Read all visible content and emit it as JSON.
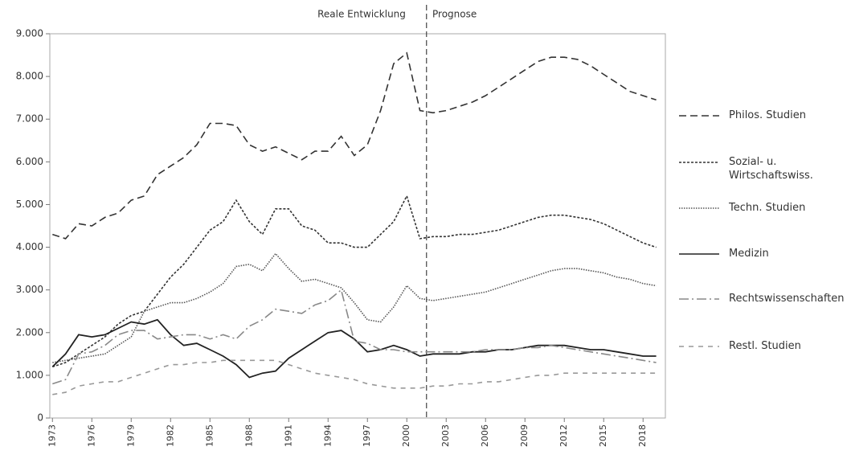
{
  "chart_data": {
    "type": "line",
    "annotations": [
      "Reale Entwicklung",
      "Prognose"
    ],
    "divider_x": 2001.5,
    "x": [
      1973,
      1974,
      1975,
      1976,
      1977,
      1978,
      1979,
      1980,
      1981,
      1982,
      1983,
      1984,
      1985,
      1986,
      1987,
      1988,
      1989,
      1990,
      1991,
      1992,
      1993,
      1994,
      1995,
      1996,
      1997,
      1998,
      1999,
      2000,
      2001,
      2002,
      2003,
      2004,
      2005,
      2006,
      2007,
      2008,
      2009,
      2010,
      2011,
      2012,
      2013,
      2014,
      2015,
      2016,
      2017,
      2018,
      2019
    ],
    "xlim": [
      1972.8,
      2019.7
    ],
    "xticks": [
      1973,
      1976,
      1979,
      1982,
      1985,
      1988,
      1991,
      1994,
      1997,
      2000,
      2003,
      2006,
      2009,
      2012,
      2015,
      2018
    ],
    "ylim": [
      0,
      9000
    ],
    "yticks": [
      0,
      {
        "value": 1000,
        "label": "1.000"
      },
      {
        "value": 2000,
        "label": "2.000"
      },
      {
        "value": 3000,
        "label": "3.000"
      },
      {
        "value": 4000,
        "label": "4.000"
      },
      {
        "value": 5000,
        "label": "5.000"
      },
      {
        "value": 6000,
        "label": "6.000"
      },
      {
        "value": 7000,
        "label": "7.000"
      },
      {
        "value": 8000,
        "label": "8.000"
      },
      {
        "value": 9000,
        "label": "9.000"
      }
    ],
    "series": [
      {
        "name": "Philos. Studien",
        "color": "#333333",
        "dash": "9,5",
        "values": [
          4300,
          4200,
          4550,
          4500,
          4700,
          4800,
          5100,
          5200,
          5700,
          5900,
          6100,
          6400,
          6900,
          6900,
          6850,
          6400,
          6250,
          6350,
          6200,
          6050,
          6250,
          6250,
          6600,
          6150,
          6400,
          7200,
          8300,
          8550,
          7200,
          7150,
          7200,
          7300,
          7400,
          7550,
          7750,
          7950,
          8150,
          8350,
          8450,
          8450,
          8400,
          8250,
          8050,
          7850,
          7650,
          7550,
          7450
        ]
      },
      {
        "name": "Sozial- u. Wirtschaftswiss.",
        "color": "#333333",
        "dash": "3,2",
        "values": [
          1200,
          1300,
          1500,
          1700,
          1900,
          2200,
          2400,
          2500,
          2900,
          3300,
          3600,
          4000,
          4400,
          4600,
          5100,
          4600,
          4300,
          4900,
          4900,
          4500,
          4400,
          4100,
          4100,
          4000,
          4000,
          4300,
          4600,
          5200,
          4200,
          4250,
          4250,
          4300,
          4300,
          4350,
          4400,
          4500,
          4600,
          4700,
          4750,
          4750,
          4700,
          4650,
          4550,
          4400,
          4250,
          4100,
          4000
        ]
      },
      {
        "name": "Techn. Studien",
        "color": "#555555",
        "dash": "1.5,1.5",
        "values": [
          1300,
          1350,
          1400,
          1450,
          1500,
          1700,
          1900,
          2500,
          2600,
          2700,
          2700,
          2800,
          2950,
          3150,
          3550,
          3600,
          3450,
          3850,
          3500,
          3200,
          3250,
          3150,
          3050,
          2700,
          2300,
          2250,
          2600,
          3100,
          2800,
          2750,
          2800,
          2850,
          2900,
          2950,
          3050,
          3150,
          3250,
          3350,
          3450,
          3500,
          3500,
          3450,
          3400,
          3300,
          3250,
          3150,
          3100
        ]
      },
      {
        "name": "Medizin",
        "color": "#222222",
        "dash": "",
        "values": [
          1200,
          1500,
          1950,
          1900,
          1950,
          2100,
          2250,
          2200,
          2300,
          1950,
          1700,
          1750,
          1600,
          1450,
          1250,
          950,
          1050,
          1100,
          1400,
          1600,
          1800,
          2000,
          2050,
          1850,
          1550,
          1600,
          1700,
          1600,
          1450,
          1500,
          1500,
          1500,
          1550,
          1550,
          1600,
          1600,
          1650,
          1700,
          1700,
          1700,
          1650,
          1600,
          1600,
          1550,
          1500,
          1450,
          1450
        ]
      },
      {
        "name": "Rechtswissenschaften",
        "color": "#888888",
        "dash": "12,4,2,4",
        "values": [
          800,
          900,
          1500,
          1550,
          1700,
          1950,
          2050,
          2050,
          1850,
          1900,
          1950,
          1950,
          1850,
          1950,
          1850,
          2150,
          2300,
          2550,
          2500,
          2450,
          2650,
          2750,
          3000,
          1800,
          1750,
          1600,
          1600,
          1550,
          1550,
          1550,
          1550,
          1550,
          1550,
          1600,
          1600,
          1600,
          1650,
          1650,
          1700,
          1650,
          1600,
          1550,
          1500,
          1450,
          1400,
          1350,
          1300
        ]
      },
      {
        "name": "Restl. Studien",
        "color": "#999999",
        "dash": "6,6",
        "values": [
          550,
          600,
          750,
          800,
          850,
          850,
          950,
          1050,
          1150,
          1250,
          1250,
          1300,
          1300,
          1350,
          1350,
          1350,
          1350,
          1350,
          1250,
          1150,
          1050,
          1000,
          950,
          900,
          800,
          750,
          700,
          700,
          700,
          750,
          750,
          800,
          800,
          850,
          850,
          900,
          950,
          1000,
          1000,
          1050,
          1050,
          1050,
          1050,
          1050,
          1050,
          1050,
          1050
        ]
      }
    ]
  }
}
